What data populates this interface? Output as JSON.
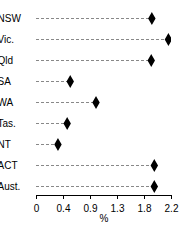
{
  "chart_data": {
    "type": "dot",
    "orientation": "horizontal",
    "categories": [
      "NSW",
      "Vic.",
      "Qld",
      "SA",
      "WA",
      "Tas.",
      "NT",
      "ACT",
      "Aust."
    ],
    "values": [
      1.88,
      2.15,
      1.87,
      0.55,
      0.97,
      0.5,
      0.35,
      1.92,
      1.92
    ],
    "color": "#000000",
    "marker": "diamond",
    "line_style": "dashed",
    "x_label": "%",
    "xlim": [
      0,
      2.2
    ],
    "xticks": [
      0,
      {
        "value": 0.44,
        "label": "0.4"
      },
      {
        "value": 0.88,
        "label": "0.9"
      },
      {
        "value": 1.32,
        "label": "1.3"
      },
      {
        "value": 1.76,
        "label": "1.8"
      },
      2.2
    ],
    "grid": false
  }
}
